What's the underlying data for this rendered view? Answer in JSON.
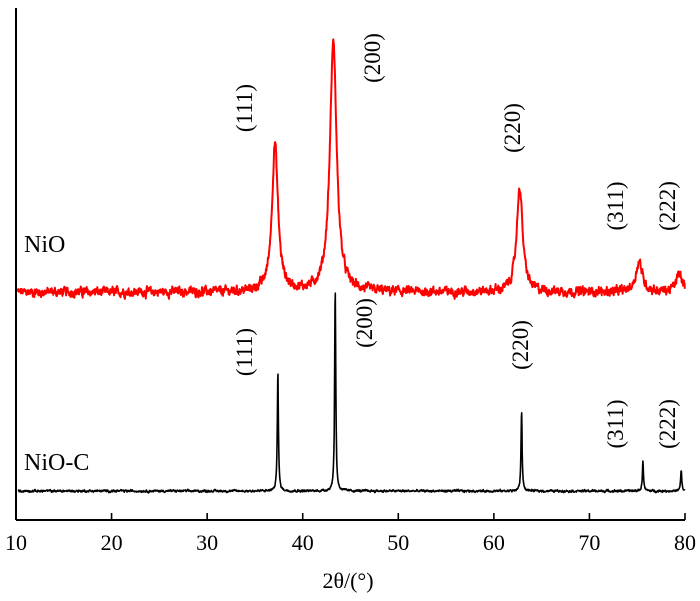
{
  "chart_data": {
    "type": "line",
    "title": "",
    "xlabel": "2θ/(°)",
    "ylabel": "",
    "xlim": [
      10,
      80
    ],
    "ylim": [
      0,
      1.9
    ],
    "xticks": [
      10,
      20,
      30,
      40,
      50,
      60,
      70,
      80
    ],
    "grid": false,
    "legend": "none",
    "series": [
      {
        "name": "NiO",
        "color": "#ff0000",
        "baseline": 0.78,
        "noise": 0.012,
        "peaks": [
          {
            "hkl": "(111)",
            "position": 37.1,
            "height": 0.58,
            "width": 0.75
          },
          {
            "hkl": "(200)",
            "position": 43.2,
            "height": 0.98,
            "width": 0.85
          },
          {
            "hkl": "(220)",
            "position": 62.7,
            "height": 0.41,
            "width": 0.75
          },
          {
            "hkl": "(311)",
            "position": 75.2,
            "height": 0.12,
            "width": 0.8
          },
          {
            "hkl": "(222)",
            "position": 79.4,
            "height": 0.07,
            "width": 0.8
          }
        ]
      },
      {
        "name": "NiO-C",
        "color": "#000000",
        "baseline": 0.0,
        "noise": 0.003,
        "peaks": [
          {
            "hkl": "(111)",
            "position": 37.4,
            "height": 0.47,
            "width": 0.14
          },
          {
            "hkl": "(200)",
            "position": 43.4,
            "height": 0.79,
            "width": 0.14
          },
          {
            "hkl": "(220)",
            "position": 62.9,
            "height": 0.31,
            "width": 0.14
          },
          {
            "hkl": "(311)",
            "position": 75.6,
            "height": 0.12,
            "width": 0.14
          },
          {
            "hkl": "(222)",
            "position": 79.6,
            "height": 0.08,
            "width": 0.14
          }
        ]
      }
    ]
  }
}
